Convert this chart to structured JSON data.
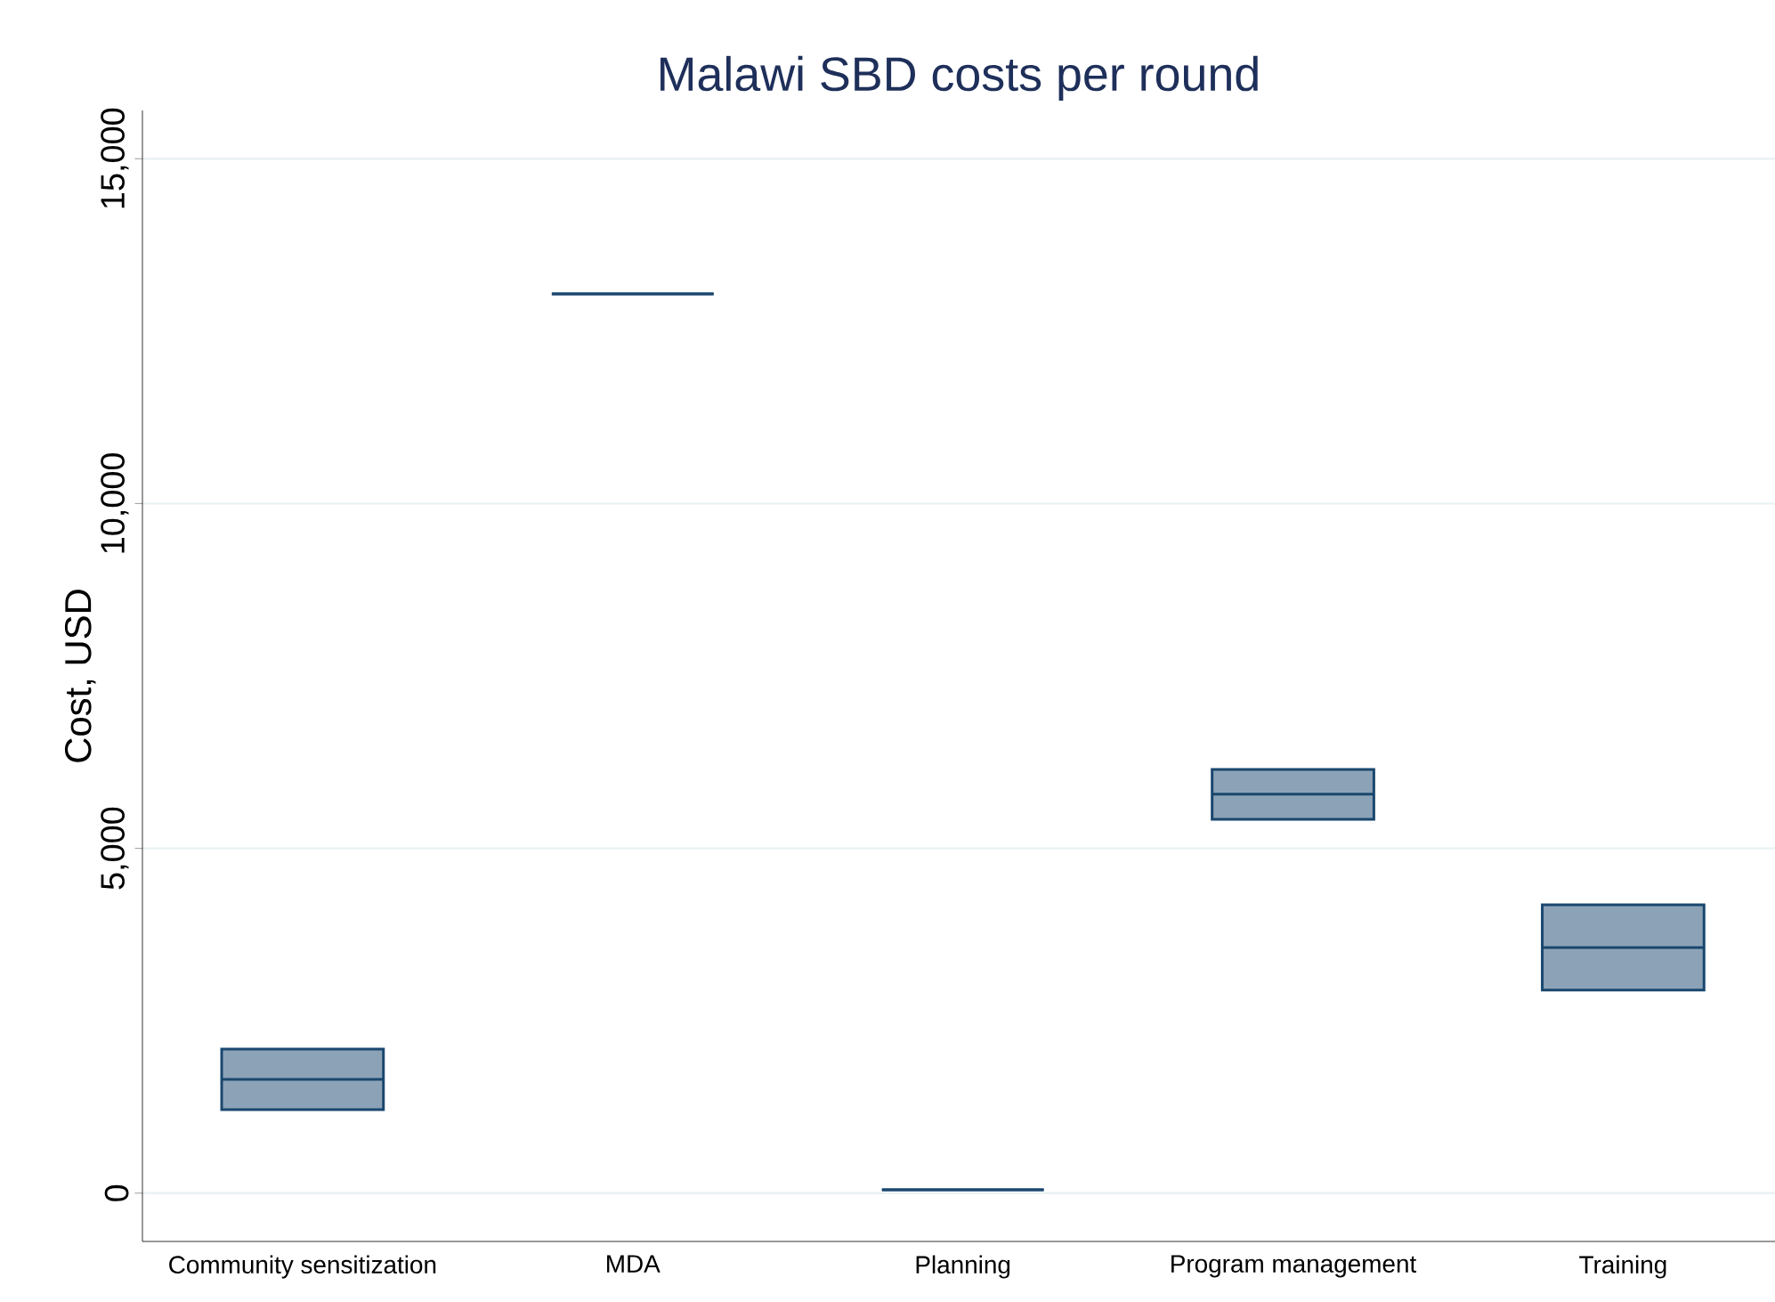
{
  "chart_data": {
    "type": "box",
    "title": "Malawi SBD costs per round",
    "ylabel": "Cost, USD",
    "categories": [
      "Community sensitization",
      "MDA",
      "Planning",
      "Program management",
      "Training"
    ],
    "series": [
      {
        "color": "#1a476f",
        "boxes": [
          {
            "low": 1210,
            "q1": 1210,
            "median": 1650,
            "q3": 2090,
            "high": 2090
          },
          {
            "low": 13040,
            "q1": 13040,
            "median": 13040,
            "q3": 13040,
            "high": 13040
          },
          {
            "low": 50,
            "q1": 50,
            "median": 50,
            "q3": 50,
            "high": 50
          },
          {
            "low": 5420,
            "q1": 5420,
            "median": 5785,
            "q3": 6145,
            "high": 6145
          },
          {
            "low": 2945,
            "q1": 2945,
            "median": 3560,
            "q3": 4180,
            "high": 4180
          }
        ]
      }
    ],
    "ylim": [
      -700,
      15700
    ],
    "yticks": [
      {
        "value": 0,
        "label": "0"
      },
      {
        "value": 5000,
        "label": "5,000"
      },
      {
        "value": 10000,
        "label": "10,000"
      },
      {
        "value": 15000,
        "label": "15,000"
      }
    ],
    "grid": "y"
  }
}
